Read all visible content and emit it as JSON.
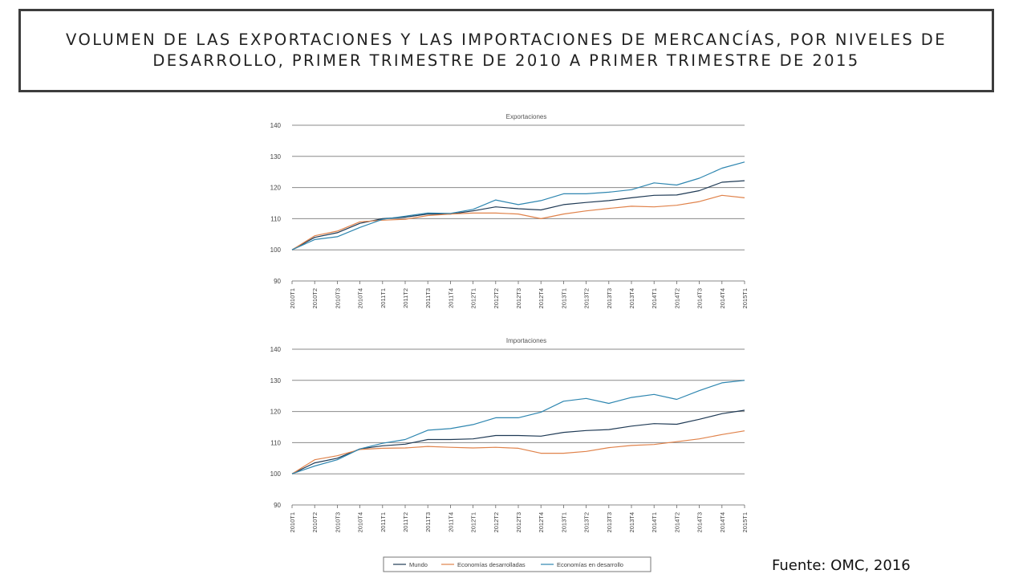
{
  "title": "VOLUMEN DE LAS EXPORTACIONES Y LAS IMPORTACIONES DE MERCANCÍAS, POR NIVELES DE DESARROLLO, PRIMER TRIMESTRE DE 2010 A PRIMER TRIMESTRE DE 2015",
  "source": "Fuente: OMC, 2016",
  "colors": {
    "mundo": "#1f3a55",
    "desarrolladas": "#e0824a",
    "en_desarrollo": "#2e86b0",
    "grid": "#8a8a8a"
  },
  "legend": [
    "Mundo",
    "Economías desarrolladas",
    "Economías en desarrollo"
  ],
  "chart_data": [
    {
      "type": "line",
      "title": "Exportaciones",
      "ylim": [
        90,
        140
      ],
      "yticks": [
        90,
        100,
        110,
        120,
        130,
        140
      ],
      "grid": true,
      "legend_position": "bottom",
      "categories": [
        "2010T1",
        "2010T2",
        "2010T3",
        "2010T4",
        "2011T1",
        "2011T2",
        "2011T3",
        "2011T4",
        "2012T1",
        "2012T2",
        "2012T3",
        "2012T4",
        "2013T1",
        "2013T2",
        "2013T3",
        "2013T4",
        "2014T1",
        "2014T2",
        "2014T3",
        "2014T4",
        "2015T1"
      ],
      "series": [
        {
          "name": "Mundo",
          "values": [
            100,
            104,
            105.5,
            108.5,
            110,
            110.5,
            111.5,
            111.5,
            112.5,
            113.8,
            113.2,
            112.8,
            114.5,
            115.2,
            115.8,
            116.7,
            117.5,
            117.6,
            119,
            121.7,
            122.2
          ]
        },
        {
          "name": "Economías desarrolladas",
          "values": [
            100,
            104.5,
            106,
            109,
            109.5,
            109.8,
            111,
            111.5,
            111.8,
            111.8,
            111.5,
            110,
            111.5,
            112.5,
            113.3,
            114,
            113.8,
            114.3,
            115.5,
            117.5,
            116.7
          ]
        },
        {
          "name": "Economías en desarrollo",
          "values": [
            100,
            103.3,
            104.2,
            107.2,
            109.8,
            110.8,
            111.8,
            111.7,
            113,
            116,
            114.5,
            115.8,
            118,
            118,
            118.5,
            119.3,
            121.5,
            120.8,
            123,
            126.2,
            128.2
          ]
        }
      ]
    },
    {
      "type": "line",
      "title": "Importaciones",
      "ylim": [
        90,
        140
      ],
      "yticks": [
        90,
        100,
        110,
        120,
        130,
        140
      ],
      "grid": true,
      "legend_position": "bottom",
      "categories": [
        "2010T1",
        "2010T2",
        "2010T3",
        "2010T4",
        "2011T1",
        "2011T2",
        "2011T3",
        "2011T4",
        "2012T1",
        "2012T2",
        "2012T3",
        "2012T4",
        "2013T1",
        "2013T2",
        "2013T3",
        "2013T4",
        "2014T1",
        "2014T2",
        "2014T3",
        "2014T4",
        "2015T1"
      ],
      "series": [
        {
          "name": "Mundo",
          "values": [
            100,
            103.5,
            105,
            108,
            109,
            109.5,
            111,
            111,
            111.2,
            112.3,
            112.3,
            112.1,
            113.3,
            113.9,
            114.2,
            115.3,
            116.1,
            115.9,
            117.5,
            119.3,
            120.4
          ]
        },
        {
          "name": "Economías desarrolladas",
          "values": [
            100,
            104.5,
            105.8,
            107.8,
            108.2,
            108.3,
            108.8,
            108.5,
            108.3,
            108.5,
            108.2,
            106.6,
            106.6,
            107.2,
            108.4,
            109.1,
            109.4,
            110.3,
            111.2,
            112.6,
            113.8
          ]
        },
        {
          "name": "Economías en desarrollo",
          "values": [
            100,
            102.5,
            104.5,
            108,
            109.8,
            111,
            114,
            114.5,
            115.8,
            118,
            118,
            119.8,
            123.3,
            124.2,
            122.6,
            124.5,
            125.5,
            123.9,
            126.7,
            129.2,
            130
          ]
        }
      ]
    }
  ]
}
